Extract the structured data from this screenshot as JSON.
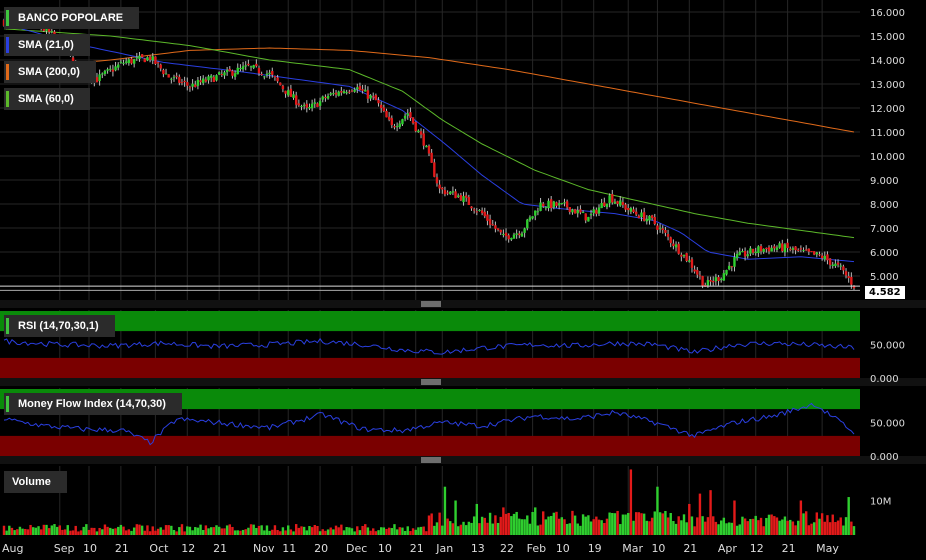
{
  "chart_data": [
    {
      "type": "candlestick",
      "title": "BANCO POPOLARE",
      "ylim": [
        4.0,
        16.0
      ],
      "y_ticks": [
        "16.000",
        "15.000",
        "14.000",
        "13.000",
        "12.000",
        "11.000",
        "10.000",
        "9.000",
        "8.000",
        "7.000",
        "6.000",
        "5.000"
      ],
      "last_price": "4.582",
      "overlays": [
        {
          "name": "SMA (21,0)",
          "color": "#2a3fe0"
        },
        {
          "name": "SMA (200,0)",
          "color": "#e06a1a"
        },
        {
          "name": "SMA (60,0)",
          "color": "#5cb82a"
        }
      ],
      "price_anchors": [
        [
          0,
          15.6
        ],
        [
          12,
          15.5
        ],
        [
          20,
          14.9
        ],
        [
          28,
          13.6
        ],
        [
          35,
          13.2
        ],
        [
          45,
          13.9
        ],
        [
          55,
          14.1
        ],
        [
          62,
          13.3
        ],
        [
          70,
          12.9
        ],
        [
          80,
          13.3
        ],
        [
          92,
          13.7
        ],
        [
          100,
          13.4
        ],
        [
          108,
          12.5
        ],
        [
          114,
          11.9
        ],
        [
          122,
          12.5
        ],
        [
          132,
          12.9
        ],
        [
          140,
          12.3
        ],
        [
          146,
          11.2
        ],
        [
          152,
          11.8
        ],
        [
          158,
          10.6
        ],
        [
          164,
          8.6
        ],
        [
          172,
          8.3
        ],
        [
          180,
          7.6
        ],
        [
          188,
          6.6
        ],
        [
          195,
          6.9
        ],
        [
          202,
          8.0
        ],
        [
          212,
          7.9
        ],
        [
          220,
          7.4
        ],
        [
          228,
          8.3
        ],
        [
          236,
          7.7
        ],
        [
          244,
          7.3
        ],
        [
          250,
          6.6
        ],
        [
          258,
          5.6
        ],
        [
          264,
          4.6
        ],
        [
          270,
          5.0
        ],
        [
          276,
          5.8
        ],
        [
          284,
          6.1
        ],
        [
          292,
          6.2
        ],
        [
          300,
          6.0
        ],
        [
          308,
          5.8
        ],
        [
          315,
          5.3
        ],
        [
          320,
          4.6
        ]
      ],
      "sma21_anchors": [
        [
          0,
          15.5
        ],
        [
          30,
          14.6
        ],
        [
          60,
          13.9
        ],
        [
          90,
          13.5
        ],
        [
          110,
          13.2
        ],
        [
          130,
          12.9
        ],
        [
          150,
          11.9
        ],
        [
          165,
          10.6
        ],
        [
          180,
          9.2
        ],
        [
          195,
          8.0
        ],
        [
          210,
          7.8
        ],
        [
          230,
          7.6
        ],
        [
          245,
          7.3
        ],
        [
          255,
          6.8
        ],
        [
          265,
          6.0
        ],
        [
          280,
          5.7
        ],
        [
          300,
          5.8
        ],
        [
          320,
          5.6
        ]
      ],
      "sma60_anchors": [
        [
          0,
          15.3
        ],
        [
          40,
          15.0
        ],
        [
          70,
          14.6
        ],
        [
          100,
          14.0
        ],
        [
          130,
          13.6
        ],
        [
          150,
          12.7
        ],
        [
          165,
          11.5
        ],
        [
          180,
          10.5
        ],
        [
          200,
          9.4
        ],
        [
          220,
          8.6
        ],
        [
          240,
          8.1
        ],
        [
          260,
          7.6
        ],
        [
          280,
          7.2
        ],
        [
          300,
          6.9
        ],
        [
          320,
          6.6
        ]
      ],
      "sma200_anchors": [
        [
          0,
          13.6
        ],
        [
          40,
          14.0
        ],
        [
          70,
          14.4
        ],
        [
          100,
          14.5
        ],
        [
          130,
          14.4
        ],
        [
          160,
          14.1
        ],
        [
          190,
          13.6
        ],
        [
          220,
          13.0
        ],
        [
          250,
          12.4
        ],
        [
          280,
          11.8
        ],
        [
          300,
          11.4
        ],
        [
          320,
          11.0
        ]
      ]
    },
    {
      "type": "line",
      "title": "RSI (14,70,30,1)",
      "ylim": [
        0,
        100
      ],
      "y_ticks": [
        "50.000",
        "0.000"
      ],
      "bands": {
        "upper": 70,
        "lower": 30
      },
      "anchors": [
        [
          0,
          55
        ],
        [
          20,
          50
        ],
        [
          40,
          48
        ],
        [
          60,
          52
        ],
        [
          80,
          47
        ],
        [
          100,
          50
        ],
        [
          120,
          55
        ],
        [
          135,
          50
        ],
        [
          150,
          42
        ],
        [
          165,
          38
        ],
        [
          180,
          45
        ],
        [
          200,
          50
        ],
        [
          215,
          48
        ],
        [
          230,
          52
        ],
        [
          245,
          50
        ],
        [
          260,
          38
        ],
        [
          275,
          50
        ],
        [
          290,
          52
        ],
        [
          305,
          49
        ],
        [
          320,
          45
        ]
      ]
    },
    {
      "type": "line",
      "title": "Money Flow Index (14,70,30)",
      "ylim": [
        0,
        100
      ],
      "y_ticks": [
        "50.000",
        "0.000"
      ],
      "bands": {
        "upper": 70,
        "lower": 30
      },
      "anchors": [
        [
          0,
          55
        ],
        [
          15,
          45
        ],
        [
          30,
          40
        ],
        [
          45,
          38
        ],
        [
          55,
          20
        ],
        [
          65,
          55
        ],
        [
          80,
          50
        ],
        [
          100,
          42
        ],
        [
          120,
          62
        ],
        [
          135,
          40
        ],
        [
          150,
          38
        ],
        [
          165,
          50
        ],
        [
          180,
          45
        ],
        [
          200,
          60
        ],
        [
          215,
          55
        ],
        [
          230,
          65
        ],
        [
          245,
          50
        ],
        [
          260,
          30
        ],
        [
          275,
          50
        ],
        [
          290,
          60
        ],
        [
          305,
          78
        ],
        [
          315,
          50
        ],
        [
          320,
          35
        ]
      ]
    },
    {
      "type": "bar",
      "title": "Volume",
      "y_ticks": [
        "10M"
      ],
      "ylim": [
        0,
        20
      ],
      "spikes": [
        [
          166,
          14
        ],
        [
          170,
          10
        ],
        [
          178,
          9
        ],
        [
          188,
          8
        ],
        [
          200,
          8
        ],
        [
          214,
          7
        ],
        [
          236,
          19
        ],
        [
          246,
          14
        ],
        [
          258,
          9
        ],
        [
          262,
          12
        ],
        [
          266,
          13
        ],
        [
          275,
          10
        ],
        [
          300,
          10
        ],
        [
          318,
          11
        ]
      ]
    }
  ],
  "x_axis": {
    "labels": [
      "Aug",
      "Sep",
      "10",
      "21",
      "Oct",
      "12",
      "21",
      "Nov",
      "11",
      "20",
      "Dec",
      "10",
      "21",
      "Jan",
      "13",
      "22",
      "Feb",
      "10",
      "19",
      "Mar",
      "10",
      "21",
      "Apr",
      "12",
      "21",
      "May"
    ],
    "positions": [
      0,
      21,
      32,
      44,
      57,
      69,
      81,
      96,
      107,
      119,
      131,
      143,
      155,
      165,
      178,
      189,
      199,
      210,
      222,
      235,
      246,
      258,
      271,
      283,
      295,
      308
    ]
  }
}
